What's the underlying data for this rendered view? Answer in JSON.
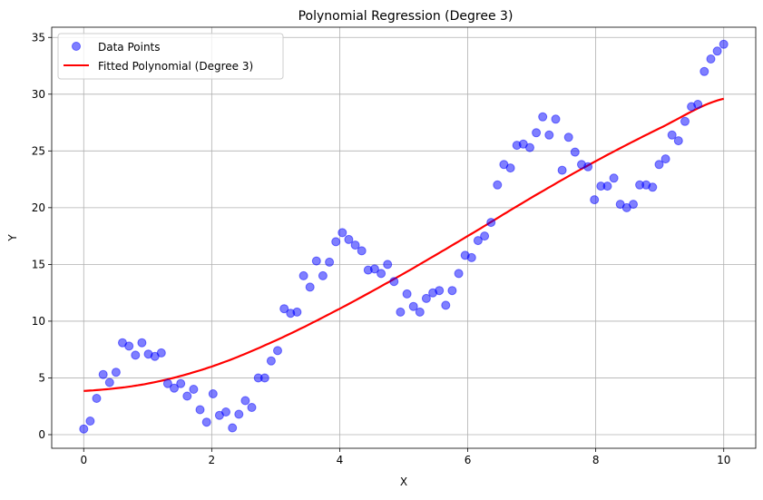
{
  "chart_data": {
    "type": "scatter",
    "title": "Polynomial Regression (Degree 3)",
    "xlabel": "X",
    "ylabel": "Y",
    "xlim": [
      -0.5,
      10.5
    ],
    "ylim": [
      -1.2,
      35.9
    ],
    "grid": true,
    "legend_position": "upper left",
    "x_ticks": [
      0,
      2,
      4,
      6,
      8,
      10
    ],
    "x_tick_labels": [
      "0",
      "2",
      "4",
      "6",
      "8",
      "10"
    ],
    "y_ticks": [
      0,
      5,
      10,
      15,
      20,
      25,
      30,
      35
    ],
    "y_tick_labels": [
      "0",
      "5",
      "10",
      "15",
      "20",
      "25",
      "30",
      "35"
    ],
    "series": [
      {
        "name": "Data Points",
        "kind": "scatter",
        "color": "#0000ff",
        "alpha": 0.5,
        "x_start": 0,
        "x_end": 10,
        "count": 100,
        "y": [
          0.5,
          1.2,
          3.2,
          5.3,
          4.6,
          5.5,
          8.1,
          7.8,
          7.0,
          8.1,
          7.1,
          6.9,
          7.2,
          4.5,
          4.1,
          4.5,
          3.4,
          4.0,
          2.2,
          1.1,
          3.6,
          1.7,
          2.0,
          0.6,
          1.8,
          3.0,
          2.4,
          5.0,
          5.0,
          6.5,
          7.4,
          11.1,
          10.7,
          10.8,
          14.0,
          13.0,
          15.3,
          14.0,
          15.2,
          17.0,
          17.8,
          17.2,
          16.7,
          16.2,
          14.5,
          14.6,
          14.2,
          15.0,
          13.5,
          10.8,
          12.4,
          11.3,
          10.8,
          12.0,
          12.5,
          12.7,
          11.4,
          12.7,
          14.2,
          15.8,
          15.6,
          17.1,
          17.5,
          18.7,
          22.0,
          23.8,
          23.5,
          25.5,
          25.6,
          25.3,
          26.6,
          28.0,
          26.4,
          27.8,
          23.3,
          26.2,
          24.9,
          23.8,
          23.6,
          20.7,
          21.9,
          21.9,
          22.6,
          20.3,
          20.0,
          20.3,
          22.0,
          22.0,
          21.8,
          23.8,
          24.3,
          26.4,
          25.9,
          27.6,
          28.9,
          29.1,
          32.0,
          33.1,
          33.8,
          34.4
        ]
      },
      {
        "name": "Fitted Polynomial (Degree 3)",
        "kind": "line",
        "color": "#ff0000",
        "x": [
          0,
          1,
          2,
          3,
          4,
          5,
          6,
          7,
          8,
          9,
          10
        ],
        "y": [
          3.85,
          4.5,
          6.0,
          8.3,
          11.1,
          14.2,
          17.5,
          20.9,
          24.1,
          27.0,
          29.6
        ]
      }
    ]
  },
  "legend": {
    "items": [
      {
        "label": "Data Points",
        "marker": "circle",
        "color": "#0000ff"
      },
      {
        "label": "Fitted Polynomial (Degree 3)",
        "marker": "line",
        "color": "#ff0000"
      }
    ]
  }
}
